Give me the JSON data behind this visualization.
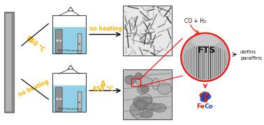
{
  "bg_color": "#ffffff",
  "yellow": "#FFB300",
  "dark": "#222222",
  "red": "#cc0000",
  "blue_dot": "#2244bb",
  "red_dot": "#cc2200",
  "electrolyte_color": "#7ec8e3",
  "box_bg": "#f0f0f0",
  "gray_rod": "#a8a8a8",
  "gray_electrode": "#909090",
  "fts_label": "FTS",
  "co_h2_label": "CO + H₂",
  "products_label": "olefins\nparaffins",
  "nh4f_label": "NH₄F Electrolyte"
}
